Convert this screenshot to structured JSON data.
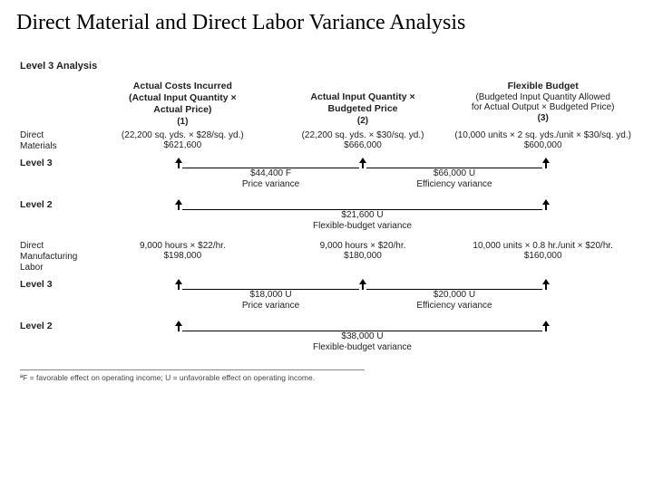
{
  "title": "Direct Material and Direct Labor Variance Analysis",
  "sectionHead": "Level 3 Analysis",
  "columns": {
    "c1": {
      "line1": "Actual Costs Incurred",
      "line2": "(Actual Input Quantity ×",
      "line3": "Actual Price)",
      "num": "(1)"
    },
    "c2": {
      "line1": "Actual Input Quantity ×",
      "line2": "Budgeted Price",
      "num": "(2)"
    },
    "c3": {
      "line1": "Flexible Budget",
      "line2": "(Budgeted Input Quantity Allowed",
      "line3": "for Actual Output × Budgeted Price)",
      "num": "(3)"
    }
  },
  "materials": {
    "label1": "Direct",
    "label2": "Materials",
    "c1calc": "(22,200 sq. yds. × $28/sq. yd.)",
    "c1val": "$621,600",
    "c2calc": "(22,200 sq. yds. × $30/sq. yd.)",
    "c2val": "$666,000",
    "c3calc": "(10,000 units × 2 sq. yds./unit × $30/sq. yd.)",
    "c3val": "$600,000",
    "lvl3_price_amt": "$44,400 F",
    "lvl3_price_name": "Price variance",
    "lvl3_eff_amt": "$66,000 U",
    "lvl3_eff_name": "Efficiency variance",
    "lvl2_amt": "$21,600 U",
    "lvl2_name": "Flexible-budget variance"
  },
  "labor": {
    "label1": "Direct",
    "label2": "Manufacturing",
    "label3": "Labor",
    "c1calc": "9,000 hours × $22/hr.",
    "c1val": "$198,000",
    "c2calc": "9,000 hours × $20/hr.",
    "c2val": "$180,000",
    "c3calc": "10,000 units × 0.8 hr./unit × $20/hr.",
    "c3val": "$160,000",
    "lvl3_price_amt": "$18,000 U",
    "lvl3_price_name": "Price variance",
    "lvl3_eff_amt": "$20,000 U",
    "lvl3_eff_name": "Efficiency variance",
    "lvl2_amt": "$38,000 U",
    "lvl2_name": "Flexible-budget variance"
  },
  "levelTags": {
    "l3": "Level 3",
    "l2": "Level 2"
  },
  "footnote": "ªF = favorable effect on operating income; U = unfavorable effect on operating income.",
  "geom": {
    "trackWidth": 596,
    "pos1": 95,
    "pos2": 298,
    "pos3": 500
  },
  "colors": {
    "text": "#000000",
    "muted": "#444444",
    "line": "#000000",
    "bg": "#ffffff"
  }
}
